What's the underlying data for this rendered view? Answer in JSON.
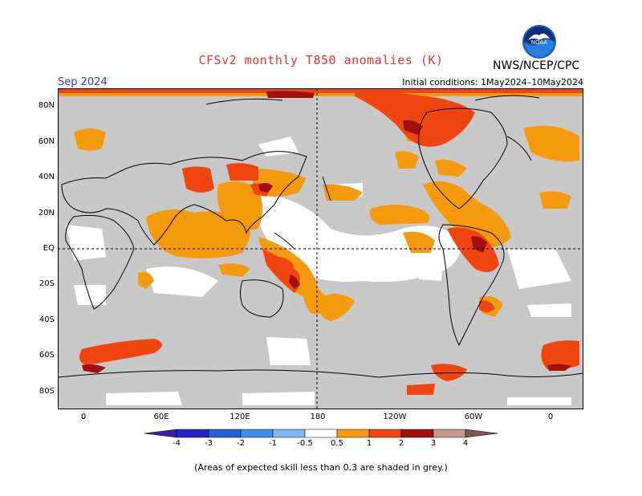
{
  "title": "CFSv2 monthly T850 anomalies (K)",
  "agency": "NWS/NCEP/CPC",
  "logo_text": "NOAA",
  "target_month": "Sep 2024",
  "initial_conditions": "Initial conditions: 1May2024–10May2024",
  "lat_labels": [
    "80N",
    "60N",
    "40N",
    "20N",
    "EQ",
    "20S",
    "40S",
    "60S",
    "80S"
  ],
  "lon_labels": [
    "0",
    "60E",
    "120E",
    "180",
    "120W",
    "60W",
    "0"
  ],
  "colorbar": {
    "labels": [
      "-4",
      "-3",
      "-2",
      "-1",
      "-0.5",
      "0.5",
      "1",
      "2",
      "3",
      "4"
    ],
    "colors": [
      "#3b1fa8",
      "#2424c8",
      "#2a5fd6",
      "#3c8ee6",
      "#7fb7f0",
      "#ffffff",
      "#f59a0c",
      "#f0450f",
      "#a10f10",
      "#c49a8c",
      "#7a5a4c"
    ]
  },
  "colors": {
    "skill_mask": "#c8c8c8",
    "no_signal": "#ffffff",
    "warm_05_1": "#f59a0c",
    "warm_1_2": "#f0450f",
    "warm_2_3": "#a10f10"
  },
  "footnote": "(Areas of expected skill less than 0.3 are shaded in grey.)"
}
